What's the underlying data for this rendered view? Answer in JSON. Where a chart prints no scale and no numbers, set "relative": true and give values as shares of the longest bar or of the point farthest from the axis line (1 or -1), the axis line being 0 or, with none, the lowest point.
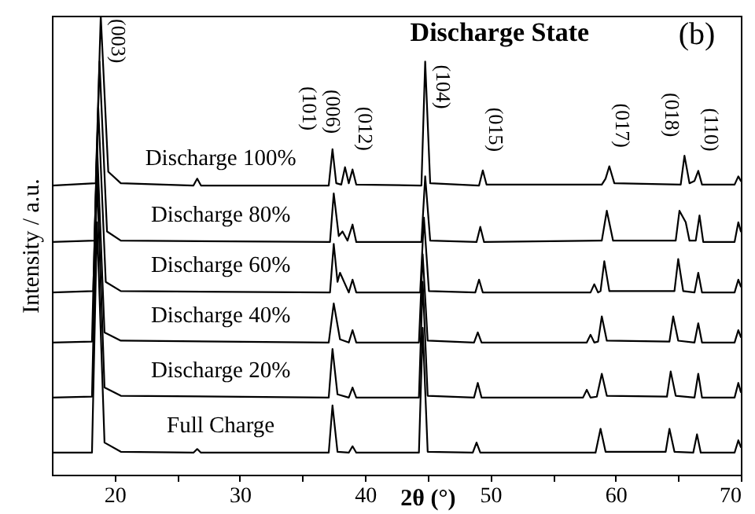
{
  "chart_data": {
    "type": "line",
    "title": "Discharge State",
    "xlabel": "2θ (°)",
    "ylabel": "Intensity / a.u.",
    "relative": true,
    "xlim": [
      15,
      70
    ],
    "xticks": [
      20,
      {
        "value": 25,
        "label": null
      },
      30,
      {
        "value": 35,
        "label": null
      },
      40,
      {
        "value": 45,
        "label": null
      },
      50,
      {
        "value": 55,
        "label": null
      },
      60,
      {
        "value": 65,
        "label": null
      },
      70
    ],
    "grid": false,
    "marker": "none",
    "line_style": "solid",
    "annotations": [
      "(b)",
      {
        "text": "(003)",
        "x": 18.9,
        "y": 1.0
      },
      {
        "text": "(101)",
        "x": 37.4,
        "y": 0.709
      },
      {
        "text": "(006)",
        "x": 38.4,
        "y": 0.67
      },
      {
        "text": "(012)",
        "x": 39.0,
        "y": 0.665
      },
      {
        "text": "(104)",
        "x": 44.8,
        "y": 0.9
      },
      {
        "text": "(015)",
        "x": 49.4,
        "y": 0.663
      },
      {
        "text": "(017)",
        "x": 59.5,
        "y": 0.672
      },
      {
        "text": "(018)",
        "x": 65.5,
        "y": 0.695
      },
      {
        "text": "(110)",
        "x": 66.6,
        "y": 0.662
      }
    ],
    "series": [
      {
        "name": "Full Charge",
        "color": "#000000",
        "x": [
          15,
          18.2,
          18.6,
          19.2,
          20.5,
          26.3,
          26.6,
          26.9,
          37.1,
          37.4,
          37.8,
          38.7,
          39.0,
          39.3,
          44.3,
          44.6,
          45.0,
          48.6,
          48.9,
          49.2,
          58.4,
          58.8,
          59.2,
          64.0,
          64.3,
          64.7,
          66.2,
          66.5,
          66.8,
          69.5,
          69.8,
          70
        ],
        "values": [
          0.048,
          0.048,
          0.55,
          0.07,
          0.05,
          0.048,
          0.056,
          0.048,
          0.048,
          0.151,
          0.05,
          0.048,
          0.062,
          0.048,
          0.048,
          0.32,
          0.05,
          0.048,
          0.07,
          0.048,
          0.048,
          0.1,
          0.05,
          0.05,
          0.1,
          0.05,
          0.048,
          0.088,
          0.048,
          0.048,
          0.075,
          0.06
        ]
      },
      {
        "name": "Discharge 20%",
        "color": "#000000",
        "x": [
          15,
          18.2,
          18.6,
          19.2,
          20.5,
          37.1,
          37.4,
          37.8,
          38.7,
          39.0,
          39.3,
          44.3,
          44.6,
          45.0,
          48.7,
          49.0,
          49.3,
          57.4,
          57.7,
          58.0,
          58.5,
          58.9,
          59.3,
          64.1,
          64.4,
          64.8,
          66.3,
          66.6,
          66.9,
          69.5,
          69.8,
          70
        ],
        "values": [
          0.168,
          0.17,
          0.65,
          0.19,
          0.172,
          0.168,
          0.274,
          0.175,
          0.168,
          0.19,
          0.168,
          0.168,
          0.42,
          0.172,
          0.168,
          0.2,
          0.168,
          0.168,
          0.185,
          0.168,
          0.17,
          0.22,
          0.172,
          0.17,
          0.225,
          0.172,
          0.168,
          0.22,
          0.168,
          0.168,
          0.2,
          0.18
        ]
      },
      {
        "name": "Discharge 40%",
        "color": "#000000",
        "x": [
          15,
          18.2,
          18.6,
          19.2,
          20.5,
          37.1,
          37.5,
          38.0,
          38.7,
          39.0,
          39.3,
          44.3,
          44.6,
          45.0,
          48.7,
          49.0,
          49.3,
          57.7,
          58.0,
          58.3,
          58.6,
          58.9,
          59.3,
          64.3,
          64.6,
          65.0,
          66.3,
          66.6,
          66.9,
          69.5,
          69.8,
          70
        ],
        "values": [
          0.288,
          0.29,
          0.72,
          0.31,
          0.292,
          0.288,
          0.373,
          0.295,
          0.288,
          0.315,
          0.288,
          0.288,
          0.48,
          0.292,
          0.288,
          0.31,
          0.288,
          0.288,
          0.305,
          0.288,
          0.29,
          0.345,
          0.292,
          0.29,
          0.345,
          0.292,
          0.288,
          0.33,
          0.288,
          0.288,
          0.315,
          0.3
        ]
      },
      {
        "name": "Discharge 60%",
        "color": "#000000",
        "x": [
          15,
          18.3,
          18.7,
          19.3,
          20.5,
          37.2,
          37.5,
          37.8,
          38.0,
          38.7,
          39.0,
          39.3,
          44.4,
          44.7,
          45.1,
          48.8,
          49.1,
          49.4,
          58.0,
          58.3,
          58.6,
          58.8,
          59.1,
          59.5,
          64.7,
          65.0,
          65.4,
          66.3,
          66.6,
          66.9,
          69.5,
          69.8,
          70
        ],
        "values": [
          0.397,
          0.4,
          0.8,
          0.42,
          0.4,
          0.397,
          0.503,
          0.42,
          0.44,
          0.397,
          0.425,
          0.397,
          0.397,
          0.56,
          0.4,
          0.397,
          0.425,
          0.397,
          0.397,
          0.415,
          0.397,
          0.4,
          0.465,
          0.4,
          0.4,
          0.47,
          0.4,
          0.397,
          0.44,
          0.397,
          0.397,
          0.425,
          0.41
        ]
      },
      {
        "name": "Discharge 80%",
        "color": "#000000",
        "x": [
          15,
          18.4,
          18.8,
          19.4,
          20.5,
          37.2,
          37.5,
          37.9,
          38.2,
          38.6,
          39.0,
          39.3,
          44.5,
          44.8,
          45.2,
          48.9,
          49.2,
          49.5,
          58.9,
          59.3,
          59.8,
          64.8,
          65.1,
          65.6,
          65.9,
          66.4,
          66.7,
          67.0,
          69.5,
          69.8,
          70
        ],
        "values": [
          0.507,
          0.51,
          0.9,
          0.53,
          0.51,
          0.507,
          0.613,
          0.52,
          0.53,
          0.51,
          0.545,
          0.507,
          0.507,
          0.65,
          0.51,
          0.507,
          0.54,
          0.507,
          0.51,
          0.575,
          0.51,
          0.51,
          0.575,
          0.55,
          0.51,
          0.51,
          0.565,
          0.507,
          0.507,
          0.55,
          0.53
        ]
      },
      {
        "name": "Discharge 100%",
        "color": "#000000",
        "x": [
          15,
          18.5,
          18.9,
          19.5,
          20.5,
          26.3,
          26.6,
          26.9,
          37.1,
          37.4,
          37.7,
          38.1,
          38.4,
          38.7,
          39.0,
          39.3,
          44.5,
          44.8,
          45.2,
          49.1,
          49.4,
          49.7,
          58.9,
          59.2,
          59.5,
          59.9,
          65.2,
          65.5,
          65.9,
          66.3,
          66.6,
          66.9,
          69.5,
          69.8,
          70
        ],
        "values": [
          0.63,
          0.635,
          1.0,
          0.66,
          0.635,
          0.63,
          0.645,
          0.63,
          0.63,
          0.709,
          0.635,
          0.632,
          0.67,
          0.635,
          0.665,
          0.632,
          0.63,
          0.9,
          0.635,
          0.63,
          0.663,
          0.632,
          0.632,
          0.645,
          0.672,
          0.635,
          0.632,
          0.695,
          0.635,
          0.64,
          0.662,
          0.632,
          0.632,
          0.65,
          0.64
        ]
      }
    ]
  }
}
